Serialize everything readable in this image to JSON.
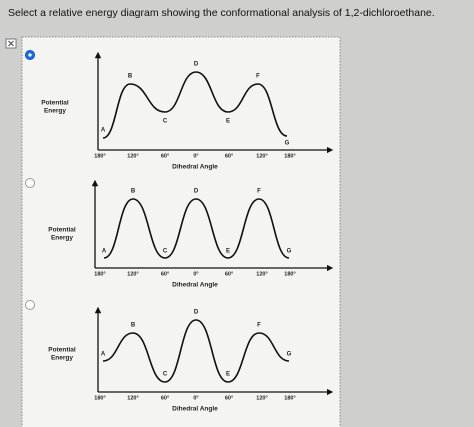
{
  "question": "Select a relative energy diagram showing the conformational analysis of 1,2-dichloroethane.",
  "options": [
    {
      "selected": true,
      "y_label": [
        "Potential",
        "Energy"
      ],
      "points": [
        "A",
        "B",
        "C",
        "D",
        "E",
        "F",
        "G"
      ],
      "x_ticks": [
        "180°",
        "120°",
        "60°",
        "0°",
        "60°",
        "120°",
        "180°"
      ],
      "x_label": "Dihedral Angle"
    },
    {
      "selected": false,
      "y_label": [
        "Potential",
        "Energy"
      ],
      "points": [
        "A",
        "B",
        "C",
        "D",
        "E",
        "F",
        "G"
      ],
      "x_ticks": [
        "180°",
        "120°",
        "60°",
        "0°",
        "60°",
        "120°",
        "180°"
      ],
      "x_label": "Dihedral Angle"
    },
    {
      "selected": false,
      "y_label": [
        "Potential",
        "Energy"
      ],
      "points": [
        "A",
        "B",
        "C",
        "D",
        "E",
        "F",
        "G"
      ],
      "x_ticks": [
        "180°",
        "120°",
        "60°",
        "0°",
        "60°",
        "120°",
        "180°"
      ],
      "x_label": "Dihedral Angle"
    }
  ]
}
